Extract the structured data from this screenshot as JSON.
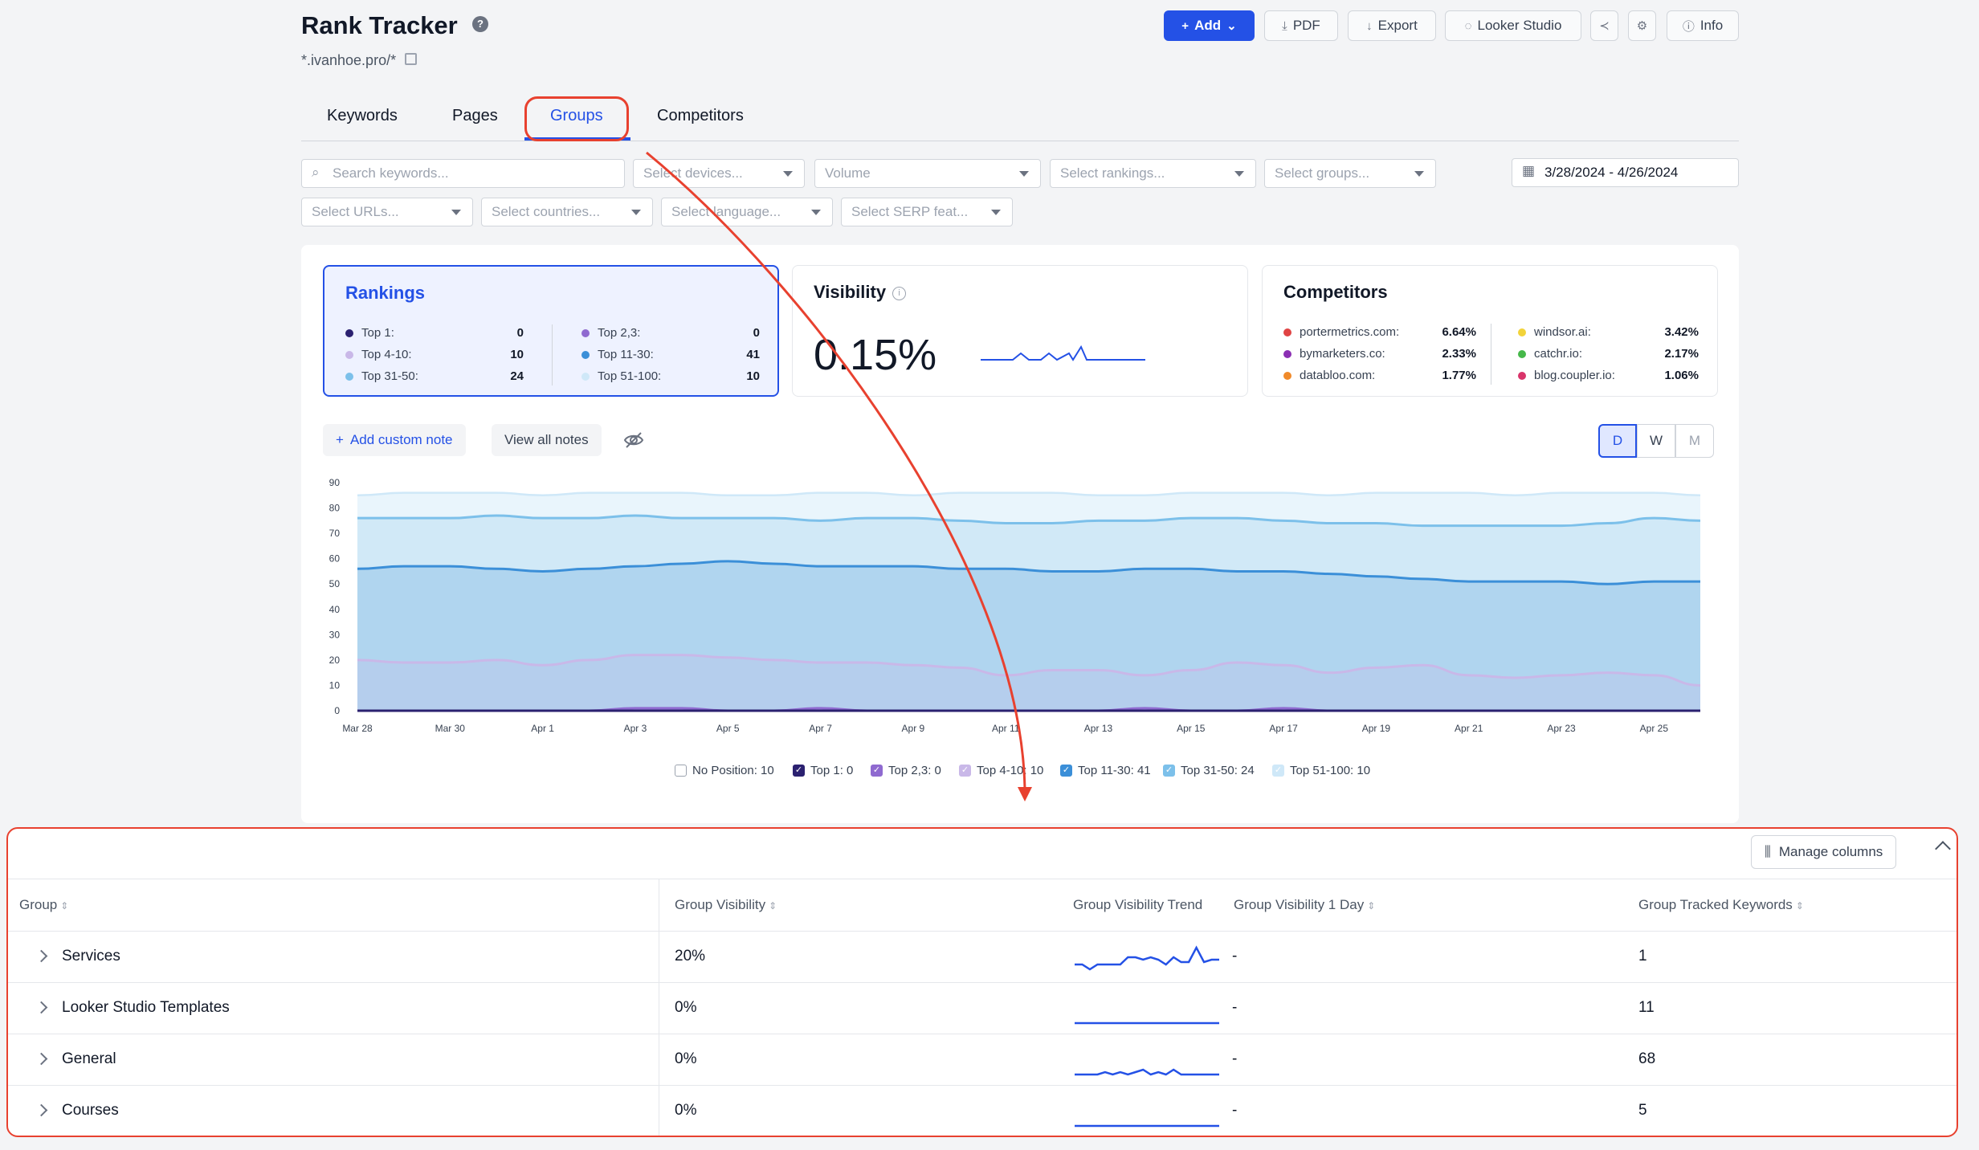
{
  "header": {
    "title": "Rank Tracker",
    "domain": "*.ivanhoe.pro/*",
    "buttons": {
      "add": "Add",
      "pdf": "PDF",
      "export": "Export",
      "looker": "Looker Studio",
      "info": "Info"
    }
  },
  "tabs": [
    {
      "label": "Keywords",
      "active": false
    },
    {
      "label": "Pages",
      "active": false
    },
    {
      "label": "Groups",
      "active": true
    },
    {
      "label": "Competitors",
      "active": false
    }
  ],
  "filters": {
    "search_placeholder": "Search keywords...",
    "devices": "Select devices...",
    "volume": "Volume",
    "rankings": "Select rankings...",
    "groups": "Select groups...",
    "date_range": "3/28/2024 - 4/26/2024",
    "urls": "Select URLs...",
    "countries": "Select countries...",
    "language": "Select language...",
    "serp": "Select SERP feat..."
  },
  "cards": {
    "rankings": {
      "title": "Rankings",
      "left": [
        {
          "label": "Top 1:",
          "value": "0",
          "color": "#2b2170"
        },
        {
          "label": "Top 4-10:",
          "value": "10",
          "color": "#c9b8e8"
        },
        {
          "label": "Top 31-50:",
          "value": "24",
          "color": "#7cc0ea"
        }
      ],
      "right": [
        {
          "label": "Top 2,3:",
          "value": "0",
          "color": "#8f6ad0"
        },
        {
          "label": "Top 11-30:",
          "value": "41",
          "color": "#3b8fd8"
        },
        {
          "label": "Top 51-100:",
          "value": "10",
          "color": "#cfe8f8"
        }
      ]
    },
    "visibility": {
      "title": "Visibility",
      "value": "0.15%"
    },
    "competitors": {
      "title": "Competitors",
      "left": [
        {
          "label": "portermetrics.com:",
          "value": "6.64%",
          "color": "#e04444"
        },
        {
          "label": "bymarketers.co:",
          "value": "2.33%",
          "color": "#8b2fb3"
        },
        {
          "label": "databloo.com:",
          "value": "1.77%",
          "color": "#f08a2a"
        }
      ],
      "right": [
        {
          "label": "windsor.ai:",
          "value": "3.42%",
          "color": "#f2d33a"
        },
        {
          "label": "catchr.io:",
          "value": "2.17%",
          "color": "#46b84a"
        },
        {
          "label": "blog.coupler.io:",
          "value": "1.06%",
          "color": "#d9346a"
        }
      ]
    }
  },
  "notes": {
    "add": "Add custom note",
    "view": "View all notes"
  },
  "granularity": [
    "D",
    "W",
    "M"
  ],
  "chart_data": {
    "type": "area",
    "x": [
      "Mar 28",
      "Mar 29",
      "Mar 30",
      "Mar 31",
      "Apr 1",
      "Apr 2",
      "Apr 3",
      "Apr 4",
      "Apr 5",
      "Apr 6",
      "Apr 7",
      "Apr 8",
      "Apr 9",
      "Apr 10",
      "Apr 11",
      "Apr 12",
      "Apr 13",
      "Apr 14",
      "Apr 15",
      "Apr 16",
      "Apr 17",
      "Apr 18",
      "Apr 19",
      "Apr 20",
      "Apr 21",
      "Apr 22",
      "Apr 23",
      "Apr 24",
      "Apr 25",
      "Apr 26"
    ],
    "x_tick_labels": [
      "Mar 28",
      "Mar 30",
      "Apr 1",
      "Apr 3",
      "Apr 5",
      "Apr 7",
      "Apr 9",
      "Apr 11",
      "Apr 13",
      "Apr 15",
      "Apr 17",
      "Apr 19",
      "Apr 21",
      "Apr 23",
      "Apr 25"
    ],
    "y_ticks": [
      0,
      10,
      20,
      30,
      40,
      50,
      60,
      70,
      80,
      90
    ],
    "ylim": [
      0,
      90
    ],
    "series": [
      {
        "name": "Top 51-100",
        "color": "#cfe8f8",
        "values": [
          85,
          86,
          86,
          86,
          85,
          86,
          86,
          86,
          85,
          85,
          86,
          86,
          85,
          86,
          86,
          86,
          85,
          85,
          86,
          86,
          86,
          85,
          86,
          86,
          86,
          85,
          86,
          86,
          86,
          85
        ]
      },
      {
        "name": "Top 31-50",
        "color": "#7cc0ea",
        "values": [
          76,
          76,
          76,
          77,
          76,
          76,
          77,
          76,
          76,
          76,
          75,
          76,
          76,
          75,
          74,
          74,
          75,
          75,
          76,
          76,
          75,
          74,
          74,
          73,
          73,
          73,
          73,
          74,
          76,
          75
        ]
      },
      {
        "name": "Top 11-30",
        "color": "#3b8fd8",
        "values": [
          56,
          57,
          57,
          56,
          55,
          56,
          57,
          58,
          59,
          58,
          57,
          57,
          57,
          56,
          56,
          55,
          55,
          56,
          56,
          55,
          55,
          54,
          53,
          52,
          51,
          51,
          51,
          50,
          51,
          51
        ]
      },
      {
        "name": "Top 4-10",
        "color": "#c9b8e8",
        "values": [
          20,
          19,
          19,
          20,
          18,
          20,
          22,
          22,
          21,
          20,
          19,
          19,
          18,
          17,
          14,
          16,
          16,
          14,
          16,
          19,
          18,
          15,
          17,
          18,
          14,
          13,
          14,
          15,
          14,
          10
        ]
      },
      {
        "name": "Top 2,3",
        "color": "#8f6ad0",
        "values": [
          0,
          0,
          0,
          0,
          0,
          0,
          1,
          1,
          0,
          0,
          1,
          0,
          0,
          0,
          0,
          0,
          0,
          1,
          0,
          0,
          1,
          0,
          0,
          0,
          0,
          0,
          0,
          0,
          0,
          0
        ]
      },
      {
        "name": "Top 1",
        "color": "#2b2170",
        "values": [
          0,
          0,
          0,
          0,
          0,
          0,
          0,
          0,
          0,
          0,
          0,
          0,
          0,
          0,
          0,
          0,
          0,
          0,
          0,
          0,
          0,
          0,
          0,
          0,
          0,
          0,
          0,
          0,
          0,
          0
        ]
      }
    ],
    "legend": [
      {
        "label": "No Position: 10",
        "checked": false,
        "color": "#ffffff"
      },
      {
        "label": "Top 1: 0",
        "checked": true,
        "color": "#2b2170"
      },
      {
        "label": "Top 2,3: 0",
        "checked": true,
        "color": "#8f6ad0"
      },
      {
        "label": "Top 4-10: 10",
        "checked": true,
        "color": "#c9b8e8"
      },
      {
        "label": "Top 11-30: 41",
        "checked": true,
        "color": "#3b8fd8"
      },
      {
        "label": "Top 31-50: 24",
        "checked": true,
        "color": "#7cc0ea"
      },
      {
        "label": "Top 51-100: 10",
        "checked": true,
        "color": "#cfe8f8"
      }
    ],
    "legend_placement": "bottom"
  },
  "table": {
    "manage_columns": "Manage columns",
    "columns": [
      "Group",
      "Group Visibility",
      "Group Visibility Trend",
      "Group Visibility 1 Day",
      "Group Tracked Keywords"
    ],
    "rows": [
      {
        "group": "Services",
        "visibility": "20%",
        "one_day": "-",
        "keywords": "1",
        "trend": [
          3,
          3,
          1,
          3,
          3,
          3,
          3,
          6,
          6,
          5,
          6,
          5,
          3,
          6,
          4,
          4,
          10,
          4,
          5,
          5
        ]
      },
      {
        "group": "Looker Studio Templates",
        "visibility": "0%",
        "one_day": "-",
        "keywords": "11",
        "trend": [
          0,
          0,
          0,
          0,
          0,
          0,
          0,
          0,
          0,
          0,
          0,
          0,
          0,
          0,
          0,
          0,
          0,
          0,
          0,
          0
        ]
      },
      {
        "group": "General",
        "visibility": "0%",
        "one_day": "-",
        "keywords": "68",
        "trend": [
          0,
          0,
          0,
          0,
          1,
          0,
          1,
          0,
          1,
          2,
          0,
          1,
          0,
          2,
          0,
          0,
          0,
          0,
          0,
          0
        ]
      },
      {
        "group": "Courses",
        "visibility": "0%",
        "one_day": "-",
        "keywords": "5",
        "trend": [
          0,
          0,
          0,
          0,
          0,
          0,
          0,
          0,
          0,
          0,
          0,
          0,
          0,
          0,
          0,
          0,
          0,
          0,
          0,
          0
        ]
      }
    ]
  }
}
